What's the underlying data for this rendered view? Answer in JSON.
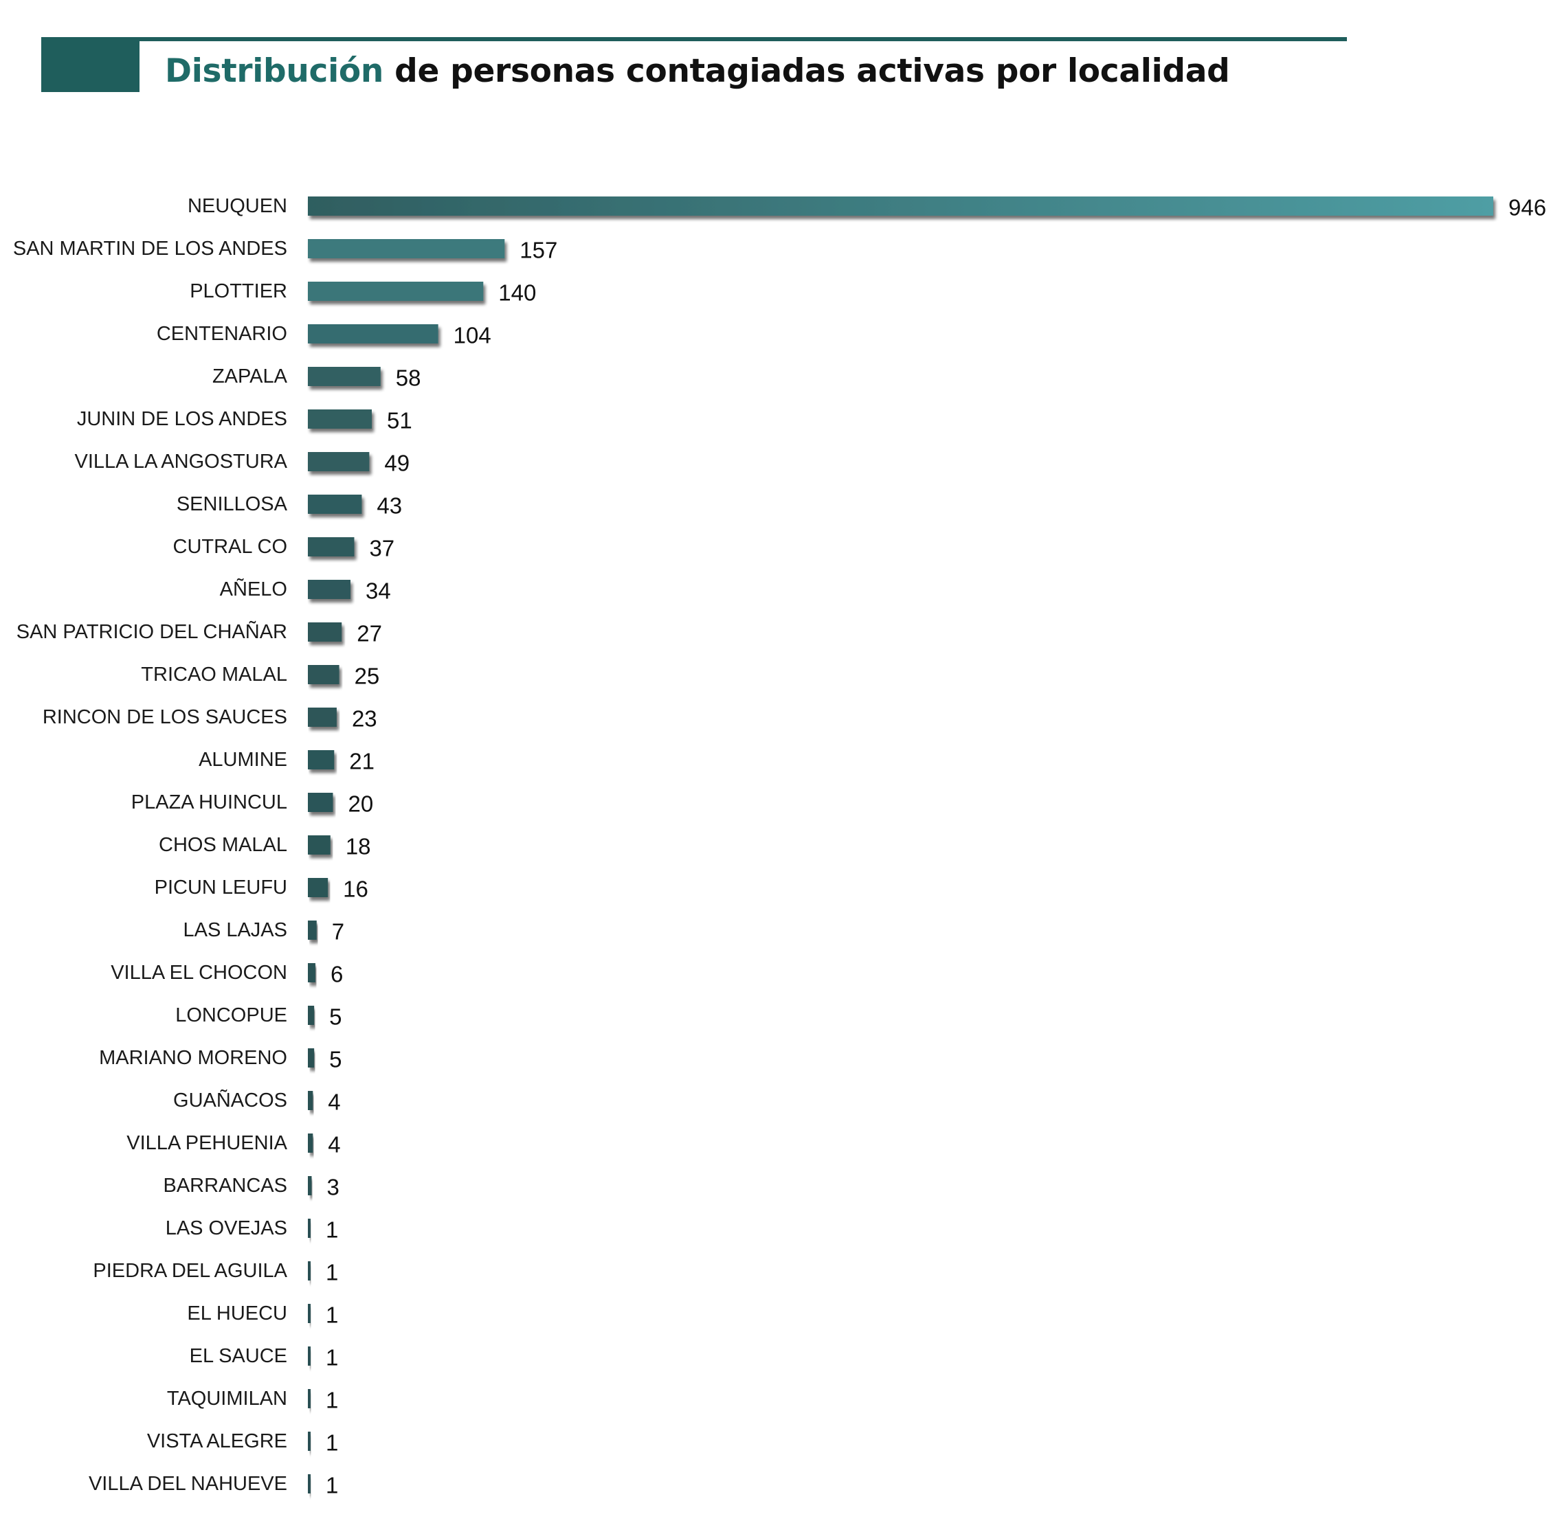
{
  "header": {
    "title_accent": "Distribución",
    "title_rest": " de personas contagiadas activas por localidad"
  },
  "colors": {
    "header": "#1f5e5c",
    "bar_light": "#4f9ea4",
    "bar_dark": "#2a5052"
  },
  "chart_data": {
    "type": "bar",
    "orientation": "horizontal",
    "title": "Distribución de personas contagiadas activas por localidad",
    "categories": [
      "NEUQUEN",
      "SAN MARTIN DE LOS ANDES",
      "PLOTTIER",
      "CENTENARIO",
      "ZAPALA",
      "JUNIN DE LOS ANDES",
      "VILLA LA ANGOSTURA",
      "SENILLOSA",
      "CUTRAL CO",
      "AÑELO",
      "SAN PATRICIO DEL CHAÑAR",
      "TRICAO MALAL",
      "RINCON DE LOS SAUCES",
      "ALUMINE",
      "PLAZA HUINCUL",
      "CHOS MALAL",
      "PICUN LEUFU",
      "LAS LAJAS",
      "VILLA EL CHOCON",
      "LONCOPUE",
      "MARIANO MORENO",
      "GUAÑACOS",
      "VILLA PEHUENIA",
      "BARRANCAS",
      "LAS OVEJAS",
      "PIEDRA DEL AGUILA",
      "EL HUECU",
      "EL SAUCE",
      "TAQUIMILAN",
      "VISTA ALEGRE",
      "VILLA DEL NAHUEVE"
    ],
    "values": [
      946,
      157,
      140,
      104,
      58,
      51,
      49,
      43,
      37,
      34,
      27,
      25,
      23,
      21,
      20,
      18,
      16,
      7,
      6,
      5,
      5,
      4,
      4,
      3,
      1,
      1,
      1,
      1,
      1,
      1,
      1
    ],
    "value_labels": [
      "946",
      "157",
      "140",
      "104",
      "58",
      "51",
      "49",
      "43",
      "37",
      "34",
      "27",
      "25",
      "23",
      "21",
      "20",
      "18",
      "16",
      "7",
      "6",
      "5",
      "5",
      "4",
      "4",
      "3",
      "1",
      "1",
      "1",
      "1",
      "1",
      "1",
      "1"
    ],
    "xlim": [
      0,
      946
    ],
    "grid": false,
    "legend": "none",
    "data_labels": true
  }
}
